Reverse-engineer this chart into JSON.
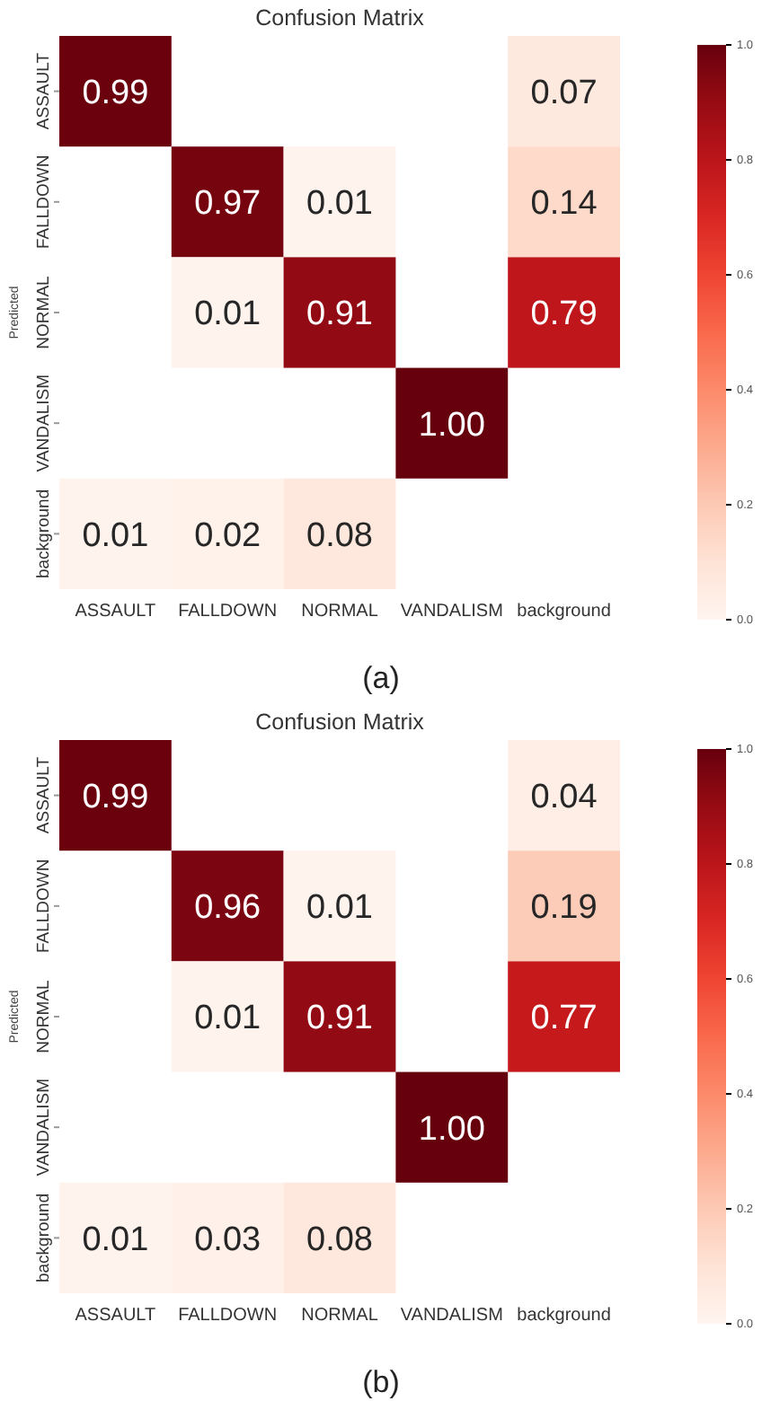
{
  "chart_data": [
    {
      "type": "heatmap",
      "title": "Confusion Matrix",
      "ylabel": "Predicted",
      "categories": [
        "ASSAULT",
        "FALLDOWN",
        "NORMAL",
        "VANDALISM",
        "background"
      ],
      "y_categories": [
        "ASSAULT",
        "FALLDOWN",
        "NORMAL",
        "VANDALISM",
        "background"
      ],
      "cells": [
        [
          0.99,
          null,
          null,
          null,
          0.07
        ],
        [
          null,
          0.97,
          0.01,
          null,
          0.14
        ],
        [
          null,
          0.01,
          0.91,
          null,
          0.79
        ],
        [
          null,
          null,
          null,
          1.0,
          null
        ],
        [
          0.01,
          0.02,
          0.08,
          null,
          null
        ]
      ],
      "cell_labels": [
        [
          "0.99",
          null,
          null,
          null,
          "0.07"
        ],
        [
          null,
          "0.97",
          "0.01",
          null,
          "0.14"
        ],
        [
          null,
          "0.01",
          "0.91",
          null,
          "0.79"
        ],
        [
          null,
          null,
          null,
          "1.00",
          null
        ],
        [
          "0.01",
          "0.02",
          "0.08",
          null,
          null
        ]
      ],
      "clim": [
        0,
        1
      ],
      "cticks": [
        {
          "value": 0,
          "label": "0.0"
        },
        {
          "value": 0.2,
          "label": "0.2"
        },
        {
          "value": 0.4,
          "label": "0.4"
        },
        {
          "value": 0.6,
          "label": "0.6"
        },
        {
          "value": 0.8,
          "label": "0.8"
        },
        {
          "value": 1,
          "label": "1.0"
        }
      ],
      "data_labels": true,
      "annotations": [
        "(a)"
      ]
    },
    {
      "type": "heatmap",
      "title": "Confusion Matrix",
      "ylabel": "Predicted",
      "categories": [
        "ASSAULT",
        "FALLDOWN",
        "NORMAL",
        "VANDALISM",
        "background"
      ],
      "y_categories": [
        "ASSAULT",
        "FALLDOWN",
        "NORMAL",
        "VANDALISM",
        "background"
      ],
      "cells": [
        [
          0.99,
          null,
          null,
          null,
          0.04
        ],
        [
          null,
          0.96,
          0.01,
          null,
          0.19
        ],
        [
          null,
          0.01,
          0.91,
          null,
          0.77
        ],
        [
          null,
          null,
          null,
          1.0,
          null
        ],
        [
          0.01,
          0.03,
          0.08,
          null,
          null
        ]
      ],
      "cell_labels": [
        [
          "0.99",
          null,
          null,
          null,
          "0.04"
        ],
        [
          null,
          "0.96",
          "0.01",
          null,
          "0.19"
        ],
        [
          null,
          "0.01",
          "0.91",
          null,
          "0.77"
        ],
        [
          null,
          null,
          null,
          "1.00",
          null
        ],
        [
          "0.01",
          "0.03",
          "0.08",
          null,
          null
        ]
      ],
      "clim": [
        0,
        1
      ],
      "cticks": [
        {
          "value": 0,
          "label": "0.0"
        },
        {
          "value": 0.2,
          "label": "0.2"
        },
        {
          "value": 0.4,
          "label": "0.4"
        },
        {
          "value": 0.6,
          "label": "0.6"
        },
        {
          "value": 0.8,
          "label": "0.8"
        },
        {
          "value": 1,
          "label": "1.0"
        }
      ],
      "data_labels": true,
      "annotations": [
        "(b)"
      ]
    }
  ]
}
